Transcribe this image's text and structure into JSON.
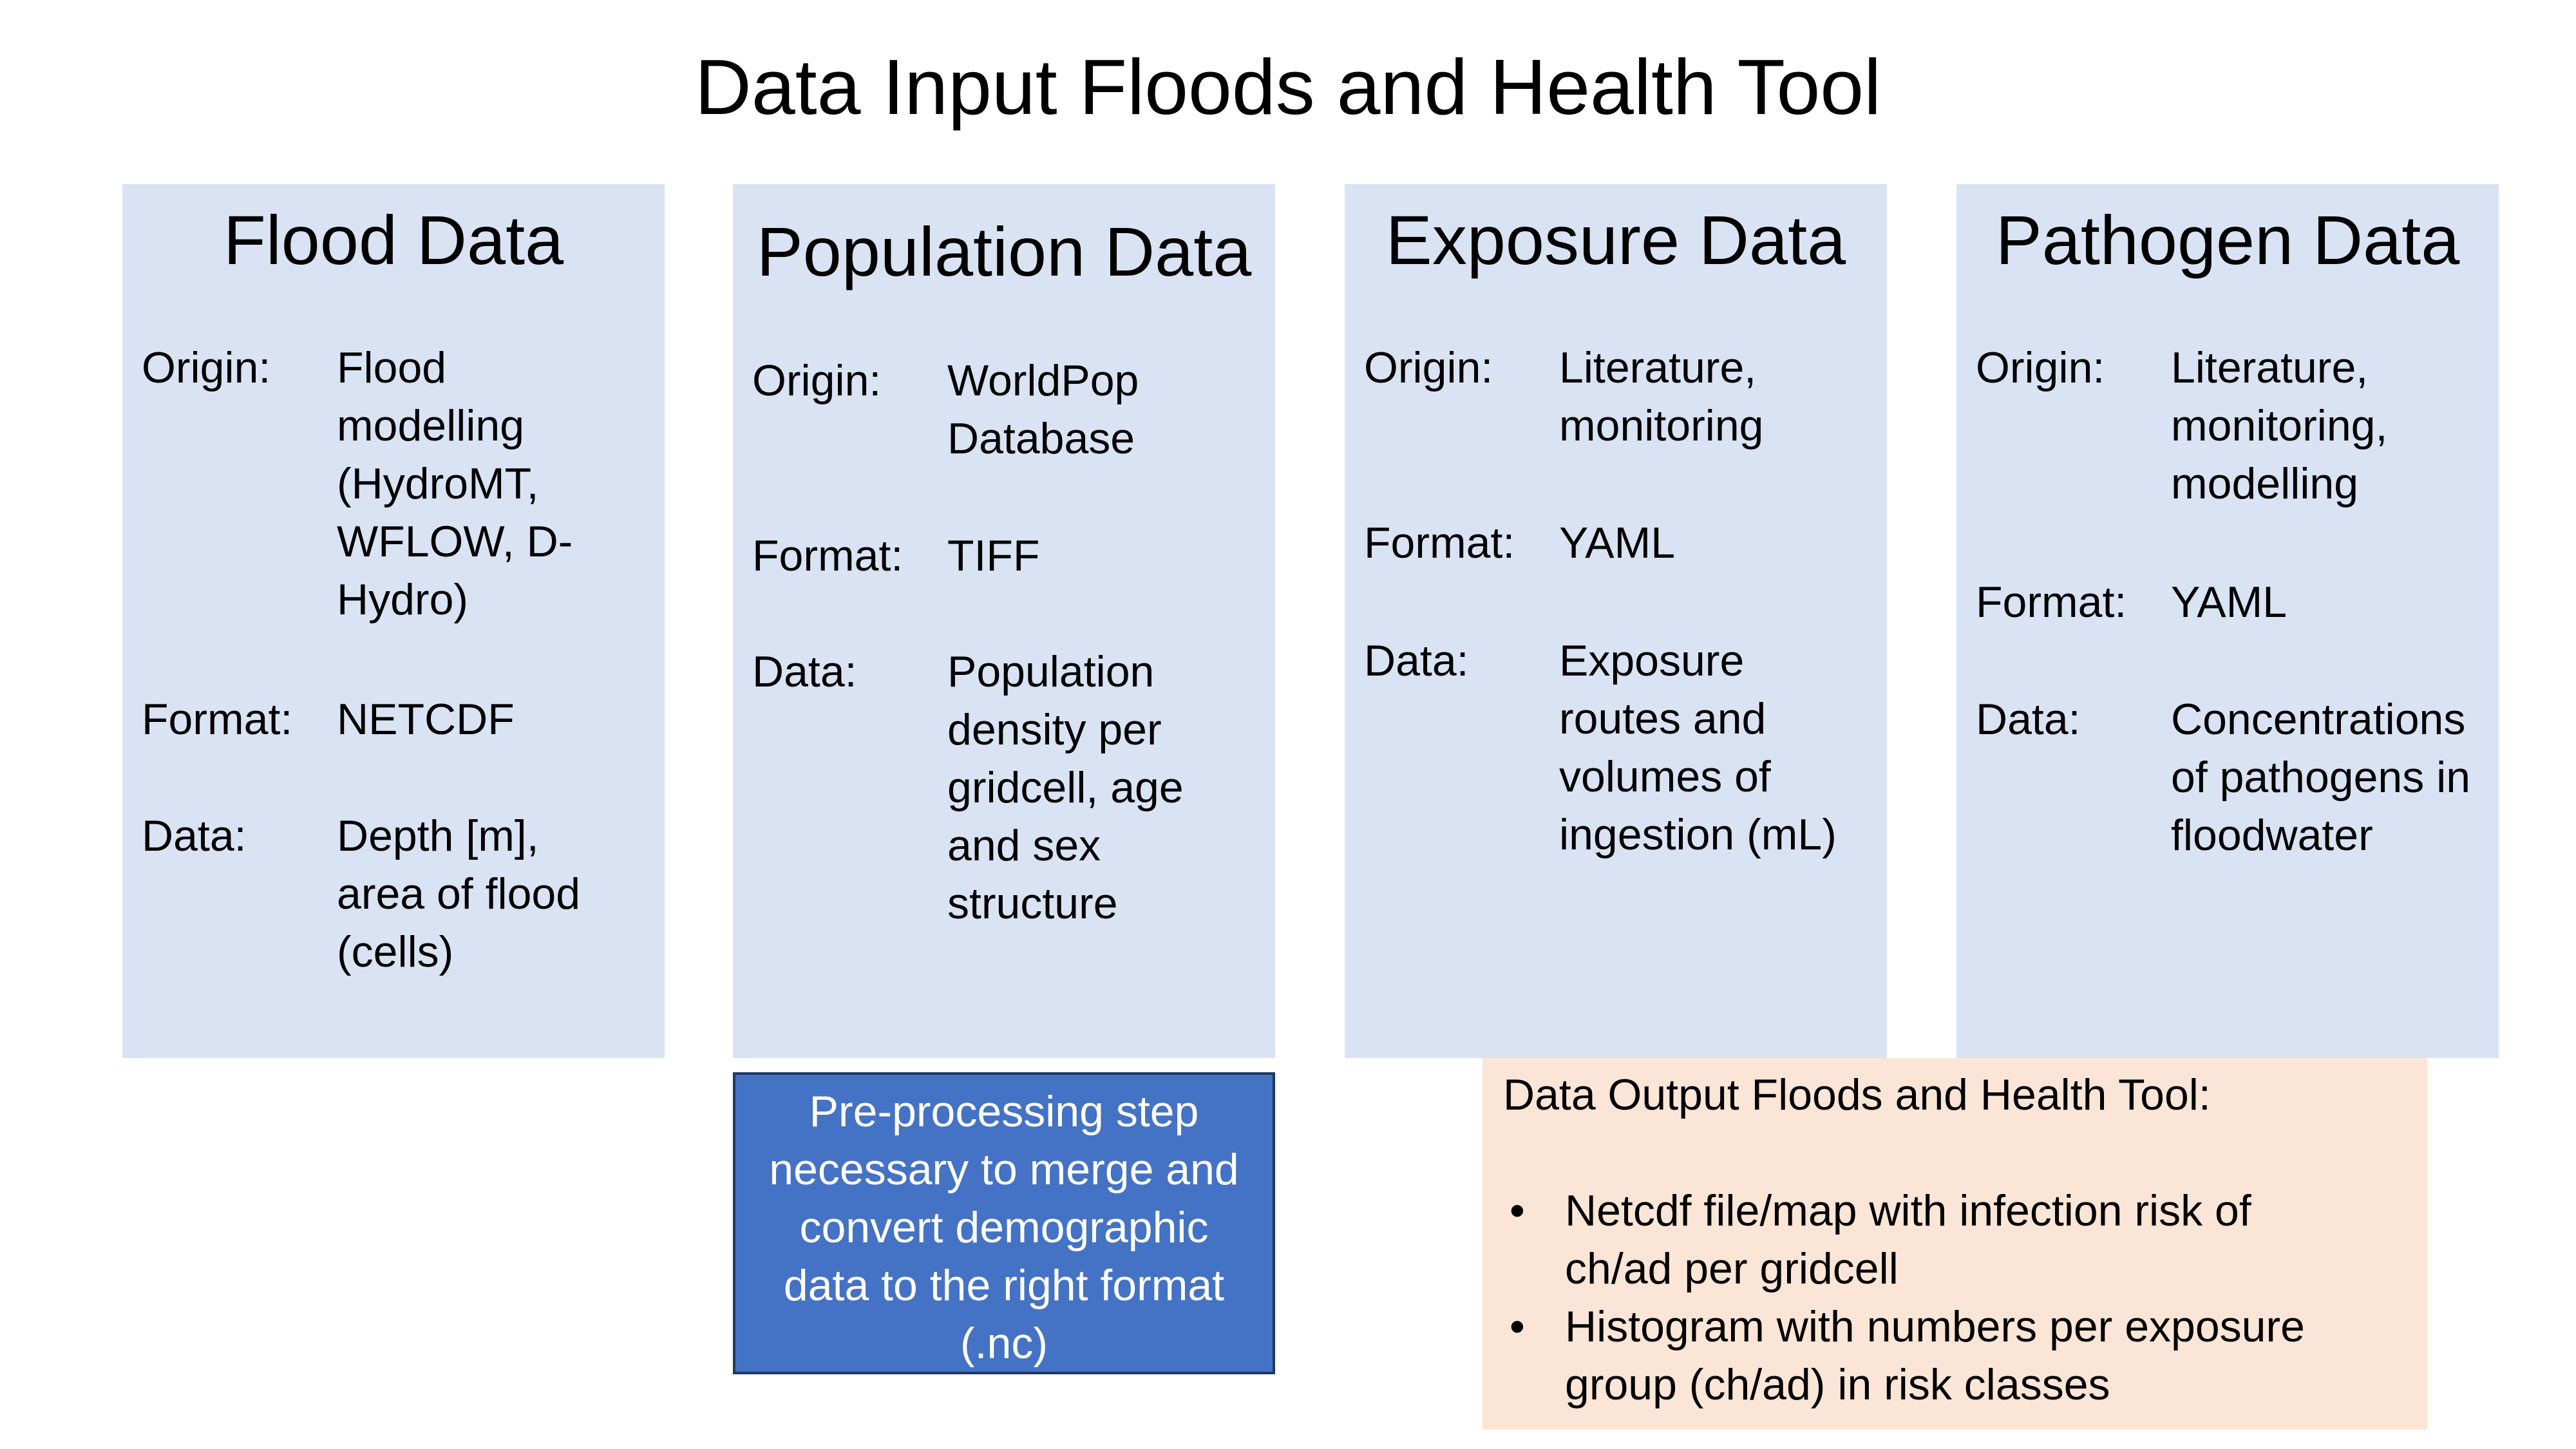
{
  "title": "Data Input Floods and Health Tool",
  "cards": [
    {
      "title": "Flood Data",
      "origin_label": "Origin:",
      "origin": "Flood\nmodelling\n(HydroMT,\nWFLOW, D-\nHydro)",
      "format_label": "Format:",
      "format": "NETCDF",
      "data_label": "Data:",
      "data": "Depth [m],\narea of flood\n(cells)"
    },
    {
      "title": "Population Data",
      "origin_label": "Origin:",
      "origin": "WorldPop\nDatabase",
      "format_label": "Format:",
      "format": "TIFF",
      "data_label": "Data:",
      "data": "Population\ndensity per\ngridcell, age\nand sex\nstructure"
    },
    {
      "title": "Exposure Data",
      "origin_label": "Origin:",
      "origin": "Literature,\nmonitoring",
      "format_label": "Format:",
      "format": "YAML",
      "data_label": "Data:",
      "data": "Exposure\nroutes and\nvolumes of\ningestion (mL)"
    },
    {
      "title": "Pathogen Data",
      "origin_label": "Origin:",
      "origin": "Literature,\nmonitoring,\nmodelling",
      "format_label": "Format:",
      "format": "YAML",
      "data_label": "Data:",
      "data": "Concentrations\nof pathogens in\nfloodwater"
    }
  ],
  "preprocessing": {
    "text": "Pre-processing step\nnecessary to merge and\nconvert demographic\ndata to the right format\n(.nc)"
  },
  "output": {
    "heading": "Data Output Floods and Health Tool:",
    "bullet_symbol": "•",
    "items": [
      "Netcdf file/map with infection risk of\nch/ad per gridcell",
      "Histogram with numbers per exposure\ngroup (ch/ad) in risk classes"
    ]
  },
  "colors": {
    "card_fill": "#dae3f3",
    "preprocessing_fill": "#4472c4",
    "output_fill": "#fbe5d6"
  }
}
